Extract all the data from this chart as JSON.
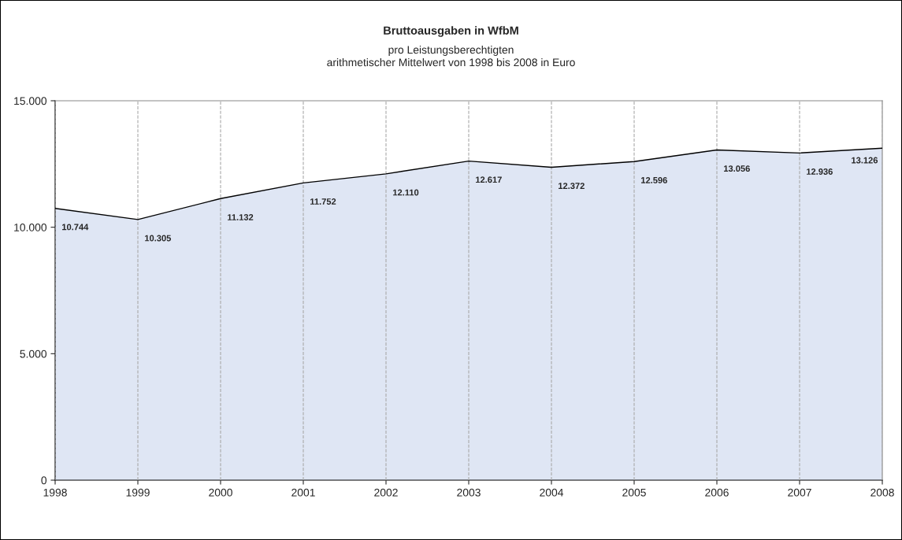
{
  "chart_data": {
    "type": "area",
    "title": "Bruttoausgaben in WfbM",
    "subtitle": "pro Leistungsberechtigten\narithmetischer Mittelwert von 1998 bis 2008 in Euro",
    "categories": [
      "1998",
      "1999",
      "2000",
      "2001",
      "2002",
      "2003",
      "2004",
      "2005",
      "2006",
      "2007",
      "2008"
    ],
    "series": [
      {
        "color": "#dfe6f4",
        "values": [
          10744,
          10305,
          11132,
          11752,
          12110,
          12617,
          12372,
          12596,
          13056,
          12936,
          13126
        ],
        "value_labels": [
          "10.744",
          "10.305",
          "11.132",
          "11.752",
          "12.110",
          "12.617",
          "12.372",
          "12.596",
          "13.056",
          "12.936",
          "13.126"
        ]
      }
    ],
    "ylim": [
      0,
      15000
    ],
    "yticks": [
      {
        "value": 0,
        "label": "0"
      },
      {
        "value": 5000,
        "label": "5.000"
      },
      {
        "value": 10000,
        "label": "10.000"
      },
      {
        "value": 15000,
        "label": "15.000"
      }
    ],
    "grid": "x",
    "line_style": "solid"
  }
}
